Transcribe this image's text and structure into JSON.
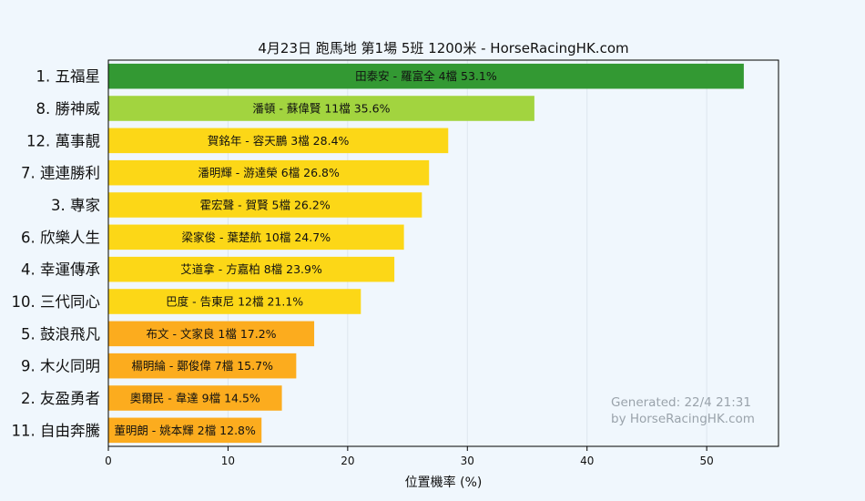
{
  "chart_data": {
    "type": "bar",
    "orientation": "horizontal",
    "title": "4月23日  跑馬地  第1場  5班  1200米 - HorseRacingHK.com",
    "xlabel": "位置機率 (%)",
    "ylabel": "",
    "xlim": [
      0,
      56
    ],
    "xticks": [
      0,
      10,
      20,
      30,
      40,
      50
    ],
    "grid": "vertical",
    "categories": [
      "1. 五福星",
      "8. 勝神威",
      "12. 萬事靚",
      "7. 連連勝利",
      "3. 專家",
      "6. 欣樂人生",
      "4. 幸運傳承",
      "10. 三代同心",
      "5. 鼓浪飛凡",
      "9. 木火同明",
      "2. 友盈勇者",
      "11. 自由奔騰"
    ],
    "values": [
      53.1,
      35.6,
      28.4,
      26.8,
      26.2,
      24.7,
      23.9,
      21.1,
      17.2,
      15.7,
      14.5,
      12.8
    ],
    "bar_labels": [
      "田泰安 - 羅富全 4檔  53.1%",
      "潘頓 - 蘇偉賢 11檔  35.6%",
      "賀銘年 - 容天鵬 3檔  28.4%",
      "潘明輝 - 游達榮 6檔  26.8%",
      "霍宏聲 - 賀賢 5檔  26.2%",
      "梁家俊 - 葉楚航 10檔  24.7%",
      "艾道拿 - 方嘉柏 8檔  23.9%",
      "巴度 - 告東尼 12檔  21.1%",
      "布文 - 文家良 1檔  17.2%",
      "楊明綸 - 鄭俊偉 7檔  15.7%",
      "奧爾民 - 韋達 9檔  14.5%",
      "董明朗 - 姚本輝 2檔  12.8%"
    ],
    "bar_colors": [
      "#339933",
      "#a2d43f",
      "#fcd717",
      "#fcd717",
      "#fcd717",
      "#fcd717",
      "#fcd717",
      "#fcd717",
      "#fcac1e",
      "#fcac1e",
      "#fcac1e",
      "#fcac1e"
    ],
    "annotation": [
      "Generated: 22/4 21:31",
      "by HorseRacingHK.com"
    ]
  }
}
